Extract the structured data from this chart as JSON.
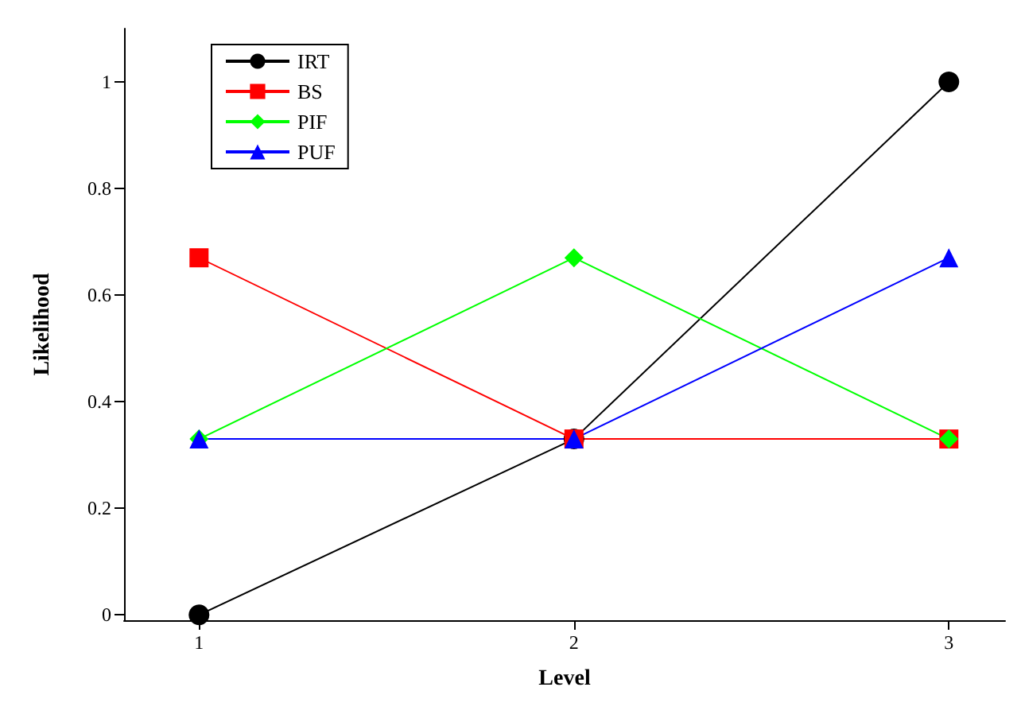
{
  "chart_data": {
    "type": "line",
    "xlabel": "Level",
    "ylabel": "Likelihood",
    "x": [
      1,
      2,
      3
    ],
    "series": [
      {
        "name": "IRT",
        "color": "#000000",
        "marker": "circle",
        "values": [
          0,
          0.33,
          1
        ]
      },
      {
        "name": "BS",
        "color": "#ff0000",
        "marker": "square",
        "values": [
          0.67,
          0.33,
          0.33
        ]
      },
      {
        "name": "PIF",
        "color": "#00ff00",
        "marker": "diamond",
        "values": [
          0.33,
          0.67,
          0.33
        ]
      },
      {
        "name": "PUF",
        "color": "#0000ff",
        "marker": "triangle",
        "values": [
          0.33,
          0.33,
          0.67
        ]
      }
    ],
    "xlim": [
      0.8,
      3.15
    ],
    "xticks": [
      1,
      2,
      3
    ],
    "ylim": [
      -0.01,
      1.1
    ],
    "yticks": [
      0,
      0.2,
      0.4,
      0.6,
      0.8,
      1
    ],
    "grid": false,
    "legend": "top left",
    "line_style": "solid"
  }
}
